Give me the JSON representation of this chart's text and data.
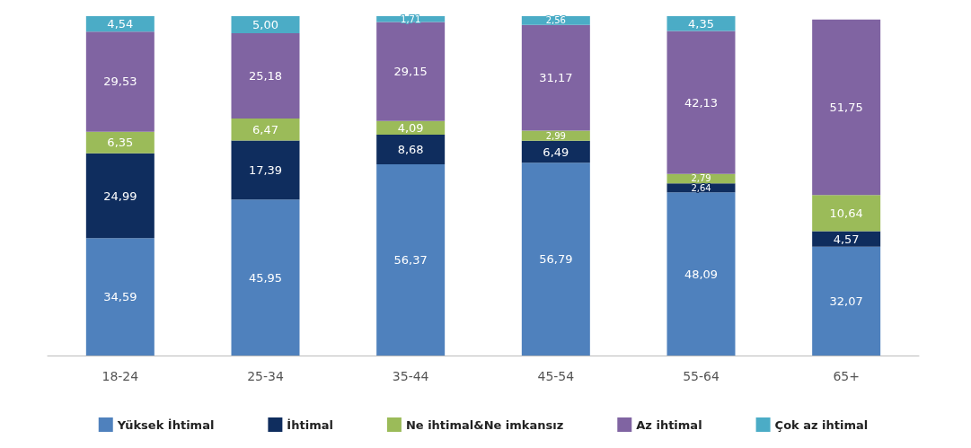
{
  "chart_data": {
    "type": "bar",
    "stacked": true,
    "categories": [
      "18-24",
      "25-34",
      "35-44",
      "45-54",
      "55-64",
      "65+"
    ],
    "series": [
      {
        "name": "Yüksek İhtimal",
        "color": "#4f81bd",
        "values": [
          34.59,
          45.95,
          56.37,
          56.79,
          48.09,
          32.07
        ],
        "value_labels": [
          "34,59",
          "45,95",
          "56,37",
          "56,79",
          "48,09",
          "32,07"
        ]
      },
      {
        "name": "İhtimal",
        "color": "#0f2d5e",
        "values": [
          24.99,
          17.39,
          8.68,
          6.49,
          2.64,
          4.57
        ],
        "value_labels": [
          "24,99",
          "17,39",
          "8,68",
          "6,49",
          "2,64",
          "4,57"
        ]
      },
      {
        "name": "Ne ihtimal&Ne imkansız",
        "color": "#9bbb59",
        "values": [
          6.35,
          6.47,
          4.09,
          2.99,
          2.79,
          10.64
        ],
        "value_labels": [
          "6,35",
          "6,47",
          "4,09",
          "2,99",
          "2,79",
          "10,64"
        ]
      },
      {
        "name": "Az ihtimal",
        "color": "#8064a2",
        "values": [
          29.53,
          25.18,
          29.15,
          31.17,
          42.13,
          51.75
        ],
        "value_labels": [
          "29,53",
          "25,18",
          "29,15",
          "31,17",
          "42,13",
          "51,75"
        ]
      },
      {
        "name": "Çok az ihtimal",
        "color": "#4bacc6",
        "values": [
          4.54,
          5.0,
          1.71,
          2.56,
          4.35,
          null
        ],
        "value_labels": [
          "4,54",
          "5,00",
          "1,71",
          "2,56",
          "4,35",
          null
        ]
      }
    ],
    "legend": "bottom",
    "grid": false
  }
}
